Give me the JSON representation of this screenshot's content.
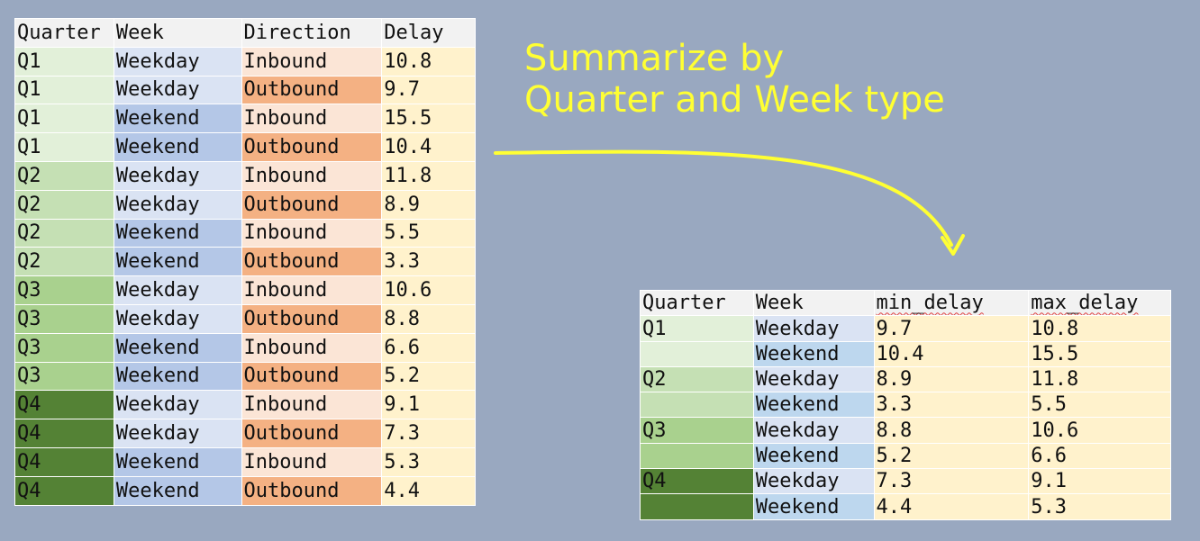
{
  "source_table": {
    "headers": [
      "Quarter",
      "Week",
      "Direction",
      "Delay"
    ],
    "rows": [
      [
        "Q1",
        "Weekday",
        "Inbound",
        "10.8"
      ],
      [
        "Q1",
        "Weekday",
        "Outbound",
        "9.7"
      ],
      [
        "Q1",
        "Weekend",
        "Inbound",
        "15.5"
      ],
      [
        "Q1",
        "Weekend",
        "Outbound",
        "10.4"
      ],
      [
        "Q2",
        "Weekday",
        "Inbound",
        "11.8"
      ],
      [
        "Q2",
        "Weekday",
        "Outbound",
        "8.9"
      ],
      [
        "Q2",
        "Weekend",
        "Inbound",
        "5.5"
      ],
      [
        "Q2",
        "Weekend",
        "Outbound",
        "3.3"
      ],
      [
        "Q3",
        "Weekday",
        "Inbound",
        "10.6"
      ],
      [
        "Q3",
        "Weekday",
        "Outbound",
        "8.8"
      ],
      [
        "Q3",
        "Weekend",
        "Inbound",
        "6.6"
      ],
      [
        "Q3",
        "Weekend",
        "Outbound",
        "5.2"
      ],
      [
        "Q4",
        "Weekday",
        "Inbound",
        "9.1"
      ],
      [
        "Q4",
        "Weekday",
        "Outbound",
        "7.3"
      ],
      [
        "Q4",
        "Weekend",
        "Inbound",
        "5.3"
      ],
      [
        "Q4",
        "Weekend",
        "Outbound",
        "4.4"
      ]
    ]
  },
  "caption": {
    "line1": "Summarize by",
    "line2": "Quarter and Week type"
  },
  "result_table": {
    "headers": [
      "Quarter",
      "Week",
      "min_delay",
      "max_delay"
    ],
    "rows": [
      [
        "Q1",
        "Weekday",
        "9.7",
        "10.8"
      ],
      [
        "",
        "Weekend",
        "10.4",
        "15.5"
      ],
      [
        "Q2",
        "Weekday",
        "8.9",
        "11.8"
      ],
      [
        "",
        "Weekend",
        "3.3",
        "5.5"
      ],
      [
        "Q3",
        "Weekday",
        "8.8",
        "10.6"
      ],
      [
        "",
        "Weekend",
        "5.2",
        "6.6"
      ],
      [
        "Q4",
        "Weekday",
        "7.3",
        "9.1"
      ],
      [
        "",
        "Weekend",
        "4.4",
        "5.3"
      ]
    ]
  },
  "colors": {
    "background": "#99a8c0",
    "caption": "#ffff33",
    "arrow": "#ffff33",
    "q1": "#e2f0d9",
    "q2": "#c5e0b4",
    "q3": "#a9d18e",
    "q4": "#548235",
    "weekday": "#dae3f3",
    "weekend": "#b4c7e7",
    "inbound": "#fbe5d6",
    "outbound": "#f4b183",
    "delay": "#fff2cc"
  },
  "icons": {
    "arrow": "curved-arrow-icon"
  }
}
